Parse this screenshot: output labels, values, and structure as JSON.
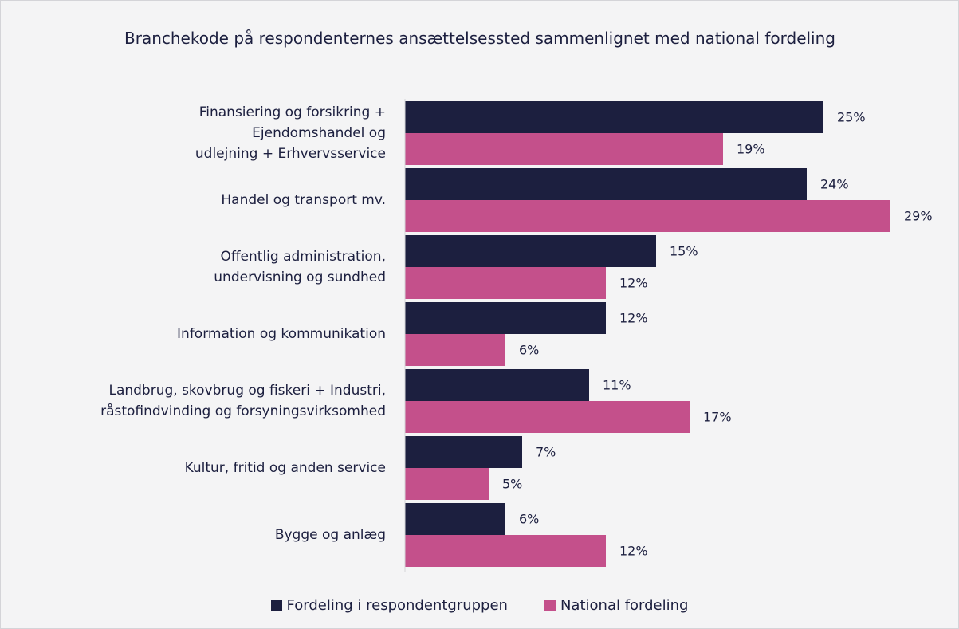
{
  "chart_data": {
    "type": "bar",
    "orientation": "horizontal",
    "title": "Branchekode på respondenternes ansættelsessted sammenlignet med national fordeling",
    "categories": [
      "Finansiering og forsikring +\nEjendomshandel og\nudlejning + Erhvervsservice",
      "Handel og transport mv.",
      "Offentlig administration,\nundervisning og sundhed",
      "Information og kommunikation",
      "Landbrug, skovbrug og fiskeri + Industri,\nråstofindvinding og forsyningsvirksomhed",
      "Kultur, fritid og anden service",
      "Bygge og anlæg"
    ],
    "series": [
      {
        "name": "Fordeling i respondentgruppen",
        "color": "#1c1f3f",
        "values": [
          25,
          24,
          15,
          12,
          11,
          7,
          6
        ],
        "value_labels": [
          "25%",
          "24%",
          "15%",
          "12%",
          "11%",
          "7%",
          "6%"
        ]
      },
      {
        "name": "National fordeling",
        "color": "#c4508b",
        "values": [
          19,
          29,
          12,
          6,
          17,
          5,
          12
        ],
        "value_labels": [
          "19%",
          "29%",
          "12%",
          "6%",
          "17%",
          "5%",
          "12%"
        ]
      }
    ],
    "legend": "bottom"
  }
}
